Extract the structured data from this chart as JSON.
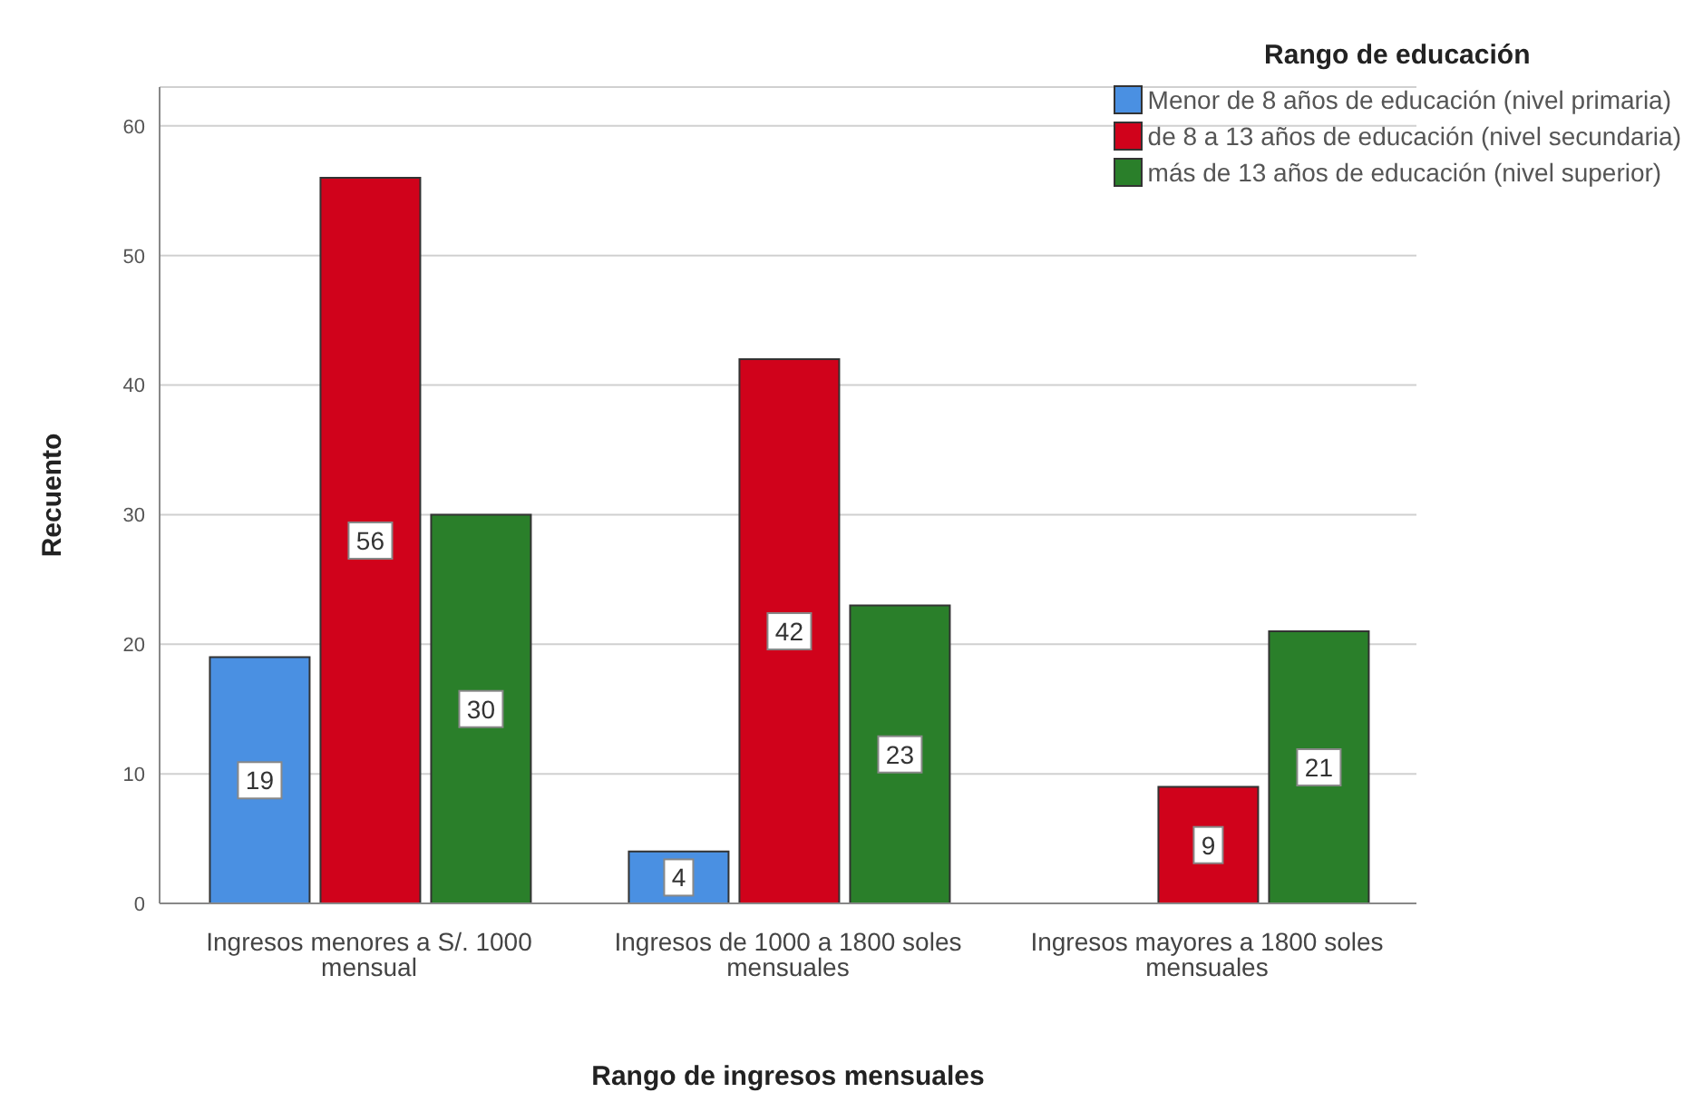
{
  "chart_data": {
    "type": "bar",
    "xlabel": "Rango de ingresos mensuales",
    "ylabel": "Recuento",
    "legend_title": "Rango de educación",
    "categories": [
      "Ingresos menores a S/. 1000 mensual",
      "Ingresos de 1000 a 1800 soles mensuales",
      "Ingresos mayores a 1800 soles mensuales"
    ],
    "series": [
      {
        "name": "Menor de 8 años de educación (nivel primaria)",
        "color": "#4a90e2",
        "values": [
          19,
          4,
          null
        ]
      },
      {
        "name": "de 8 a 13 años de educación (nivel secundaria)",
        "color": "#d0021b",
        "values": [
          56,
          42,
          9
        ]
      },
      {
        "name": "más de 13 años de educación (nivel superior)",
        "color": "#2a7f2a",
        "values": [
          30,
          23,
          21
        ]
      }
    ],
    "ylim": [
      0,
      63
    ],
    "yticks": [
      0,
      10,
      20,
      30,
      40,
      50,
      60
    ],
    "grid": "y",
    "legend": "top right",
    "data_labels": true
  }
}
